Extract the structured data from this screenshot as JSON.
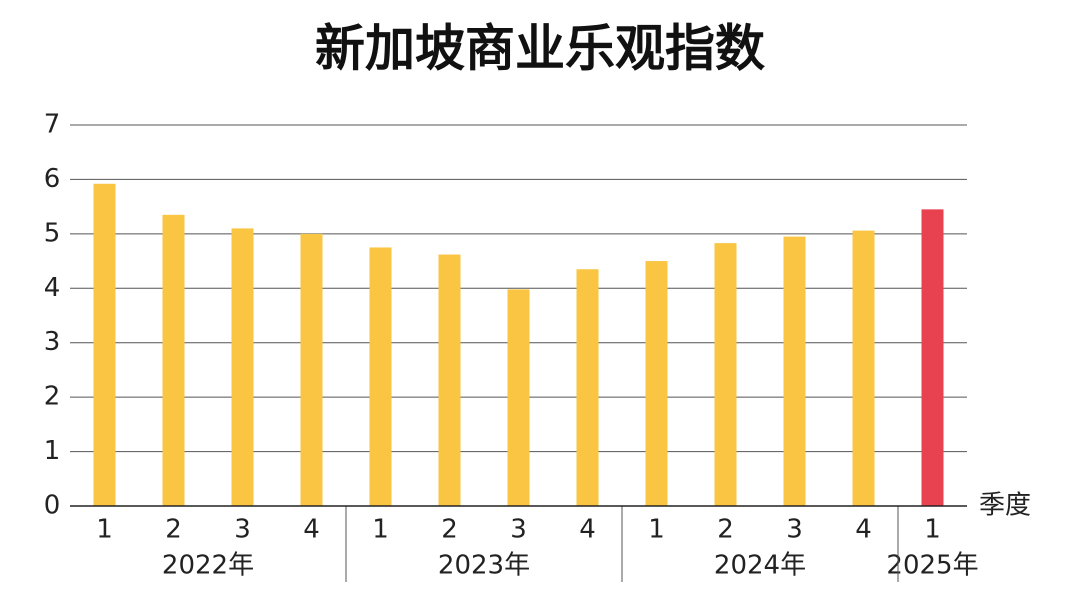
{
  "chart_data": {
    "type": "bar",
    "title": "新加坡商业乐观指数",
    "x_label": "季度",
    "groups": [
      {
        "name": "2022年",
        "categories": [
          "1",
          "2",
          "3",
          "4"
        ]
      },
      {
        "name": "2023年",
        "categories": [
          "1",
          "2",
          "3",
          "4"
        ]
      },
      {
        "name": "2024年",
        "categories": [
          "1",
          "2",
          "3",
          "4"
        ]
      },
      {
        "name": "2025年",
        "categories": [
          "1"
        ]
      }
    ],
    "values": [
      5.92,
      5.35,
      5.1,
      5.0,
      4.75,
      4.62,
      3.98,
      4.35,
      4.5,
      4.83,
      4.95,
      5.06,
      5.45
    ],
    "colors": [
      "#f9c543",
      "#f9c543",
      "#f9c543",
      "#f9c543",
      "#f9c543",
      "#f9c543",
      "#f9c543",
      "#f9c543",
      "#f9c543",
      "#f9c543",
      "#f9c543",
      "#f9c543",
      "#e8414f"
    ],
    "ylim": [
      0,
      7
    ],
    "yticks": [
      0,
      1,
      2,
      3,
      4,
      5,
      6,
      7
    ],
    "grid": true
  }
}
